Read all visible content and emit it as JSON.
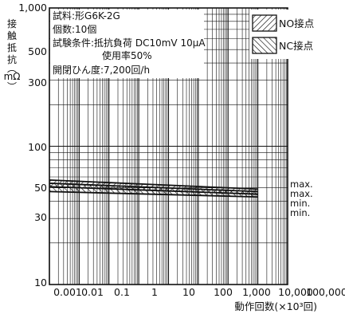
{
  "chart_data": {
    "type": "line",
    "xscale": "log",
    "yscale": "log",
    "xlim": [
      0.001,
      100000
    ],
    "ylim": [
      10,
      1000
    ],
    "xticks": [
      0.001,
      0.01,
      0.1,
      1,
      10,
      100,
      1000,
      10000,
      100000
    ],
    "xtick_labels": [
      "0.001",
      "0.01",
      "0.1",
      "1",
      "10",
      "100",
      "1,000",
      "10,000",
      "100,000"
    ],
    "yticks": [
      10,
      30,
      50,
      100,
      300,
      500,
      1000
    ],
    "ytick_labels": [
      "10",
      "30",
      "50",
      "100",
      "300",
      "500",
      "1,000"
    ],
    "xlabel": "動作回数(×10³回)",
    "ylabel": [
      "接",
      "触",
      "抵",
      "抗",
      "︵",
      "mΩ",
      "︶"
    ],
    "notes": [
      "試料:形G6K-2G",
      "個数:10個",
      "試験条件:抵抗負荷 DC10mV 10μA",
      "使用率50%",
      "開閉ひん度:7,200回/h"
    ],
    "legend": {
      "position": "top-right",
      "items": [
        {
          "label": "NO接点",
          "pattern": "diagonal-forward"
        },
        {
          "label": "NC接点",
          "pattern": "diagonal-back"
        }
      ]
    },
    "series": [
      {
        "legend": "NO接点",
        "x": [
          0.001,
          10000
        ],
        "y": [
          57,
          49
        ]
      },
      {
        "legend": "NO接点",
        "x": [
          0.001,
          10000
        ],
        "y": [
          51,
          45
        ]
      },
      {
        "legend": "NC接点",
        "x": [
          0.001,
          10000
        ],
        "y": [
          54,
          47
        ]
      },
      {
        "legend": "NC接点",
        "x": [
          0.001,
          10000
        ],
        "y": [
          47,
          43
        ]
      }
    ],
    "annotations": [
      "max.",
      "max.",
      "min.",
      "min."
    ],
    "grid": true,
    "colors": {
      "line": "#111111",
      "grid": "#111111",
      "background": "#ffffff"
    }
  }
}
